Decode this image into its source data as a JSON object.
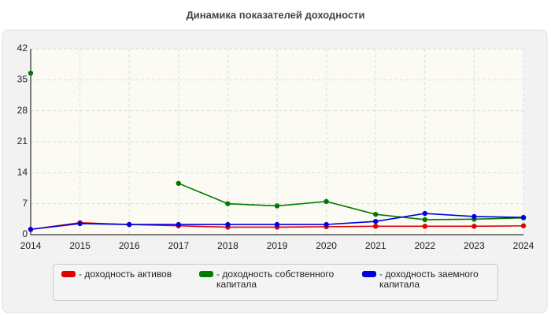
{
  "chart_data": {
    "type": "line",
    "title": "Динамика показателей доходности",
    "x": [
      2014,
      2015,
      2016,
      2017,
      2018,
      2019,
      2020,
      2021,
      2022,
      2023,
      2024
    ],
    "xlim": [
      2014,
      2024
    ],
    "xticks": [
      2014,
      2015,
      2016,
      2017,
      2018,
      2019,
      2020,
      2021,
      2022,
      2023,
      2024
    ],
    "ylim": [
      0,
      42
    ],
    "yticks": [
      0,
      7,
      14,
      21,
      28,
      35,
      42
    ],
    "grid": true,
    "series": [
      {
        "name": "- доходность активов",
        "color": "#e00000",
        "values": [
          1.2,
          2.7,
          2.3,
          2.0,
          1.7,
          1.7,
          1.8,
          1.9,
          1.9,
          1.9,
          2.0
        ]
      },
      {
        "name": "- доходность собственного капитала",
        "color": "#007a00",
        "values": [
          36.5,
          null,
          null,
          11.6,
          7.0,
          6.5,
          7.5,
          4.6,
          3.4,
          3.5,
          3.8
        ]
      },
      {
        "name": "- доходность заемного капитала",
        "color": "#0000e0",
        "values": [
          1.2,
          2.5,
          2.3,
          2.3,
          2.3,
          2.3,
          2.3,
          3.0,
          4.8,
          4.1,
          3.9
        ]
      }
    ]
  }
}
